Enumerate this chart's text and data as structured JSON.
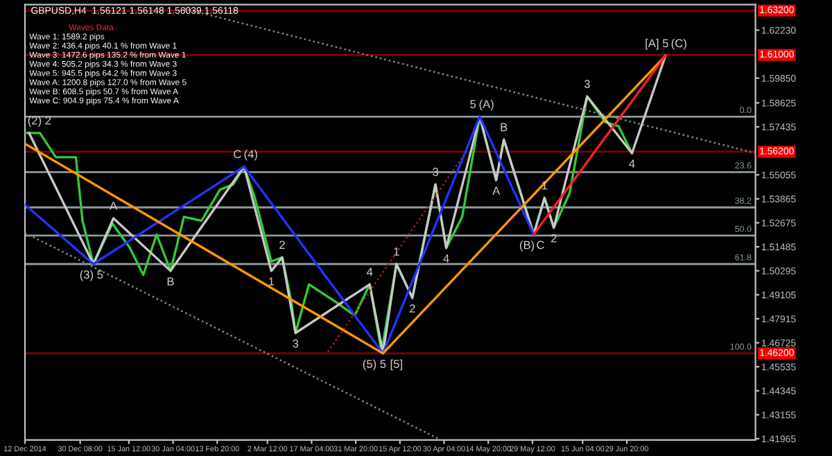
{
  "chart_data": {
    "type": "line",
    "title": "GBPUSD,H4  1.56121 1.56148 1.56039 1.56118",
    "x": [
      "2014-12-12T00:00",
      "2014-12-16T23:00",
      "2014-12-22T06:00",
      "2014-12-28T22:00",
      "2014-12-31T03:00",
      "2015-01-03T17:00",
      "2015-01-10T01:00",
      "2015-01-15T20:00",
      "2015-01-20T07:00",
      "2015-01-24T17:00",
      "2015-01-29T08:00",
      "2015-02-02T19:00",
      "2015-02-08T14:00",
      "2015-02-14T18:00",
      "2015-02-19T04:00",
      "2015-02-22T18:00",
      "2015-02-26T08:00",
      "2015-03-03T19:00",
      "2015-03-07T10:00",
      "2015-03-10T11:00",
      "2015-03-11T20:00",
      "2015-03-16T07:00",
      "2015-03-25T04:00",
      "2015-03-31T12:00",
      "2015-04-05T11:00",
      "2015-04-09T09:00",
      "2015-04-14T08:00",
      "2015-04-19T15:00",
      "2015-04-27T07:00",
      "2015-04-30T21:00",
      "2015-05-06T04:00",
      "2015-05-12T00:00",
      "2015-05-17T11:00",
      "2015-05-20T00:00",
      "2015-05-29T22:00",
      "2015-06-02T12:00",
      "2015-06-05T14:00",
      "2015-06-10T21:00",
      "2015-06-16T16:00",
      "2015-06-22T16:00",
      "2015-06-27T02:00",
      "2015-07-01T13:00"
    ],
    "series": [
      {
        "color": "#33cc33",
        "values": [
          1.5713,
          1.5713,
          1.5593,
          1.5593,
          1.5277,
          1.5063,
          1.5264,
          1.5143,
          1.5009,
          1.521,
          1.5029,
          1.5297,
          1.5277,
          1.5432,
          1.5458,
          1.5546,
          1.5391,
          1.5076,
          1.5096,
          1.4875,
          1.4721,
          1.4962,
          1.4875,
          1.4808,
          1.4962,
          1.4627,
          1.5063,
          1.4895,
          1.5458,
          1.5143,
          1.5297,
          1.5794,
          1.5479,
          1.568,
          1.521,
          1.5391,
          1.5243,
          1.5416,
          1.5894,
          1.5767,
          1.5747,
          1.5613
        ]
      },
      {
        "color": "#c8c8c8",
        "x": [
          "2014-12-13T09:00",
          "2015-01-03T17:00",
          "2015-01-10T09:00",
          "2015-01-29T08:00",
          "2015-02-22T18:00",
          "2015-03-03T19:00",
          "2015-03-07T10:00",
          "2015-03-11T20:00",
          "2015-04-05T11:00",
          "2015-04-09T21:00",
          "2015-04-14T08:00",
          "2015-04-19T15:00",
          "2015-04-27T07:00",
          "2015-04-30T21:00",
          "2015-05-12T00:00",
          "2015-05-17T11:00",
          "2015-05-20T00:00",
          "2015-05-29T22:00",
          "2015-06-02T12:00",
          "2015-06-05T14:00",
          "2015-06-16T16:00",
          "2015-07-01T13:00",
          "2015-07-12T16:00"
        ],
        "values": [
          1.5713,
          1.5063,
          1.529,
          1.5029,
          1.5546,
          1.5029,
          1.5096,
          1.4721,
          1.4962,
          1.462,
          1.5063,
          1.4895,
          1.5458,
          1.5143,
          1.5794,
          1.5479,
          1.568,
          1.521,
          1.5391,
          1.5243,
          1.5894,
          1.5613,
          1.6096
        ]
      },
      {
        "color": "#2233ff",
        "x": [
          "2014-12-12T00:00",
          "2015-01-03T17:00",
          "2015-02-22T18:00",
          "2015-04-09T21:00",
          "2015-05-12T00:00",
          "2015-05-29T22:00"
        ],
        "values": [
          1.5358,
          1.5063,
          1.5546,
          1.462,
          1.5794,
          1.521
        ]
      },
      {
        "color": "#ff9900",
        "x": [
          "2014-12-12T00:00",
          "2015-04-09T21:00",
          "2015-07-12T16:00"
        ],
        "values": [
          1.566,
          1.462,
          1.6096
        ]
      },
      {
        "color": "#ff2020",
        "x": [
          "2015-05-29T22:00",
          "2015-07-12T16:00"
        ],
        "values": [
          1.521,
          1.6096
        ]
      },
      {
        "color": "#8a8a8a",
        "line_style": "dotted",
        "x": [
          "2015-02-02T19:00",
          "2015-08-11T13:00"
        ],
        "values": [
          1.633,
          1.5613
        ]
      },
      {
        "color": "#8a8a8a",
        "line_style": "dotted",
        "x": [
          "2014-12-12T00:00",
          "2015-04-29T00:00"
        ],
        "values": [
          1.5217,
          1.4191
        ]
      },
      {
        "color": "#b02020",
        "line_style": "dotted",
        "x": [
          "2015-03-22T14:00",
          "2015-05-06T04:00"
        ],
        "values": [
          1.4627,
          1.5592
        ]
      }
    ],
    "xlim": [
      "2014-12-12T00:00",
      "2015-08-11T13:00"
    ],
    "xticks": [
      {
        "value": "2014-12-12T00:00",
        "label": "12 Dec 2014"
      },
      {
        "value": "2014-12-30T08:00",
        "label": "30 Dec 08:00"
      },
      {
        "value": "2015-01-15T12:00",
        "label": "15 Jan 12:00"
      },
      {
        "value": "2015-01-30T04:00",
        "label": "30 Jan 04:00"
      },
      {
        "value": "2015-02-13T20:00",
        "label": "13 Feb 20:00"
      },
      {
        "value": "2015-03-02T12:00",
        "label": "2 Mar 12:00"
      },
      {
        "value": "2015-03-17T04:00",
        "label": "17 Mar 04:00"
      },
      {
        "value": "2015-03-31T20:00",
        "label": "31 Mar 20:00"
      },
      {
        "value": "2015-04-15T12:00",
        "label": "15 Apr 12:00"
      },
      {
        "value": "2015-04-30T04:00",
        "label": "30 Apr 04:00"
      },
      {
        "value": "2015-05-14T20:00",
        "label": "14 May 20:00"
      },
      {
        "value": "2015-05-29T12:00",
        "label": "29 May 12:00"
      },
      {
        "value": "2015-06-15T04:00",
        "label": "15 Jun 04:00"
      },
      {
        "value": "2015-06-29T20:00",
        "label": "29 Jun 20:00"
      }
    ],
    "ylim": [
      1.419,
      1.635
    ],
    "yticks": [
      {
        "value": 1.41965,
        "label": "1.41965"
      },
      {
        "value": 1.43155,
        "label": "1.43155"
      },
      {
        "value": 1.44345,
        "label": "1.44345"
      },
      {
        "value": 1.45535,
        "label": "1.45535"
      },
      {
        "value": 1.46725,
        "label": "1.46725"
      },
      {
        "value": 1.47915,
        "label": "1.47915"
      },
      {
        "value": 1.49105,
        "label": "1.49105"
      },
      {
        "value": 1.50295,
        "label": "1.50295"
      },
      {
        "value": 1.51485,
        "label": "1.51485"
      },
      {
        "value": 1.52675,
        "label": "1.52675"
      },
      {
        "value": 1.53865,
        "label": "1.53865"
      },
      {
        "value": 1.55055,
        "label": "1.55055"
      },
      {
        "value": 1.57435,
        "label": "1.57435"
      },
      {
        "value": 1.58625,
        "label": "1.58625"
      },
      {
        "value": 1.5985,
        "label": "1.59850"
      },
      {
        "value": 1.6223,
        "label": "1.62230"
      }
    ],
    "ref_lines": [
      {
        "axis": "y",
        "value": 1.632,
        "label": "1.63200",
        "color": "#800000"
      },
      {
        "axis": "y",
        "value": 1.61,
        "label": "1.61000",
        "color": "#800000"
      },
      {
        "axis": "y",
        "value": 1.562,
        "label": "1.56200",
        "color": "#800000"
      },
      {
        "axis": "y",
        "value": 1.462,
        "label": "1.46200",
        "color": "#800000"
      },
      {
        "axis": "y",
        "value": 1.5794,
        "color": "#8c9a9c"
      },
      {
        "axis": "y",
        "value": 1.5519,
        "color": "#8c9a9c"
      },
      {
        "axis": "y",
        "value": 1.5344,
        "color": "#8c9a9c"
      },
      {
        "axis": "y",
        "value": 1.5204,
        "color": "#8c9a9c"
      },
      {
        "axis": "y",
        "value": 1.5063,
        "color": "#8c9a9c"
      }
    ],
    "annotations": [
      "Waves Data :",
      "Wave 1: 1589.2 pips",
      "Wave 2: 436.4 pips 40.1 % from Wave 1",
      "Wave 3: 1472.6 pips 135.2 % from Wave 1",
      "Wave 4: 505.2 pips 34.3 % from Wave 3",
      "Wave 5: 945.5 pips 64.2 % from Wave 3",
      "Wave A: 1200.8 pips 127.0 % from Wave 5",
      "Wave B: 608.5 pips 50.7 % from Wave A",
      "Wave C: 904.9 pips 75.4 % from Wave A",
      {
        "text": "0.0",
        "x": "2015-08-11T13:00",
        "y": 1.5794
      },
      {
        "text": "23.6",
        "x": "2015-08-11T13:00",
        "y": 1.5519
      },
      {
        "text": "38.2",
        "x": "2015-08-11T13:00",
        "y": 1.5344
      },
      {
        "text": "50.0",
        "x": "2015-08-11T13:00",
        "y": 1.5204
      },
      {
        "text": "61.8",
        "x": "2015-08-11T13:00",
        "y": 1.5063
      },
      {
        "text": "100.0",
        "x": "2015-08-11T13:00",
        "y": 1.462
      },
      {
        "text": "(2)",
        "x": "2014-12-13T09:00",
        "y": 1.5713
      },
      {
        "text": "2",
        "x": "2014-12-13T09:00",
        "y": 1.5713
      },
      {
        "text": "(3)",
        "x": "2015-01-03T17:00",
        "y": 1.5063
      },
      {
        "text": "5",
        "x": "2015-01-03T17:00",
        "y": 1.5063
      },
      {
        "text": "A",
        "x": "2015-01-10T09:00",
        "y": 1.529
      },
      {
        "text": "B",
        "x": "2015-01-29T08:00",
        "y": 1.5029
      },
      {
        "text": "C",
        "x": "2015-02-22T18:00",
        "y": 1.5546
      },
      {
        "text": "(4)",
        "x": "2015-02-22T18:00",
        "y": 1.5546
      },
      {
        "text": "1",
        "x": "2015-03-03T19:00",
        "y": 1.5029
      },
      {
        "text": "2",
        "x": "2015-03-07T10:00",
        "y": 1.5096
      },
      {
        "text": "3",
        "x": "2015-03-11T20:00",
        "y": 1.4721
      },
      {
        "text": "4",
        "x": "2015-04-05T11:00",
        "y": 1.4962
      },
      {
        "text": "(5)",
        "x": "2015-04-09T21:00",
        "y": 1.462
      },
      {
        "text": "5",
        "x": "2015-04-09T21:00",
        "y": 1.462
      },
      {
        "text": "[5]",
        "x": "2015-04-09T21:00",
        "y": 1.462
      },
      {
        "text": "1",
        "x": "2015-04-14T08:00",
        "y": 1.5063
      },
      {
        "text": "2",
        "x": "2015-04-19T15:00",
        "y": 1.4895
      },
      {
        "text": "3",
        "x": "2015-04-27T07:00",
        "y": 1.5458
      },
      {
        "text": "4",
        "x": "2015-04-30T21:00",
        "y": 1.5143
      },
      {
        "text": "5",
        "x": "2015-05-12T00:00",
        "y": 1.5794
      },
      {
        "text": "(A)",
        "x": "2015-05-12T00:00",
        "y": 1.5794
      },
      {
        "text": "A",
        "x": "2015-05-17T11:00",
        "y": 1.5479
      },
      {
        "text": "B",
        "x": "2015-05-20T00:00",
        "y": 1.568
      },
      {
        "text": "(B)",
        "x": "2015-05-29T22:00",
        "y": 1.521
      },
      {
        "text": "C",
        "x": "2015-05-29T22:00",
        "y": 1.521
      },
      {
        "text": "1",
        "x": "2015-06-02T12:00",
        "y": 1.5391
      },
      {
        "text": "2",
        "x": "2015-06-05T14:00",
        "y": 1.5243
      },
      {
        "text": "3",
        "x": "2015-06-16T16:00",
        "y": 1.5894
      },
      {
        "text": "4",
        "x": "2015-07-01T13:00",
        "y": 1.5613
      },
      {
        "text": "[A]",
        "x": "2015-07-12T16:00",
        "y": 1.6096
      },
      {
        "text": "5",
        "x": "2015-07-12T16:00",
        "y": 1.6096
      },
      {
        "text": "(C)",
        "x": "2015-07-12T16:00",
        "y": 1.6096
      }
    ],
    "grid": false,
    "legend": false
  }
}
